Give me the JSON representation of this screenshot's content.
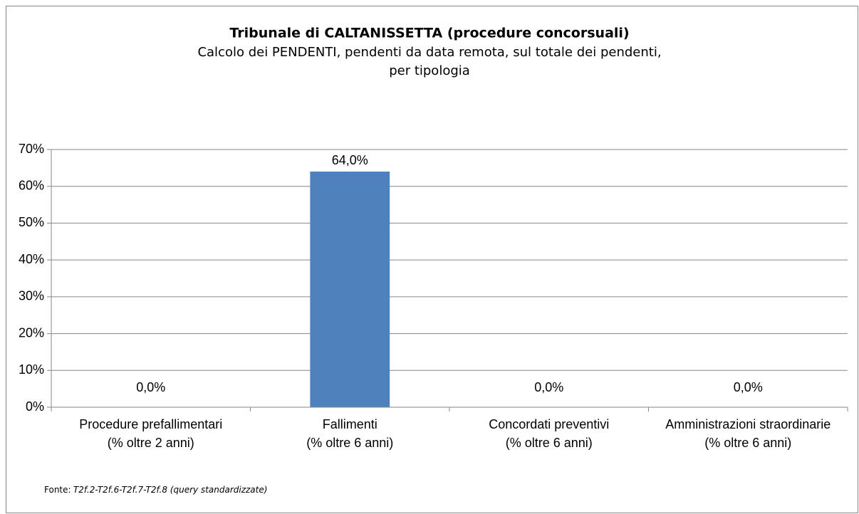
{
  "chart_data": {
    "type": "bar",
    "title": "Tribunale di CALTANISSETTA (procedure concorsuali)",
    "subtitle": "Calcolo dei PENDENTI, pendenti da data remota, sul totale dei pendenti,\nper tipologia",
    "categories": [
      "Procedure prefallimentari\n(% oltre 2 anni)",
      "Fallimenti\n(% oltre 6 anni)",
      "Concordati preventivi\n(% oltre 6 anni)",
      "Amministrazioni straordinarie\n(% oltre 6 anni)"
    ],
    "values": [
      0,
      64,
      0,
      0
    ],
    "value_labels": [
      "0,0%",
      "64,0%",
      "0,0%",
      "0,0%"
    ],
    "color": "#4f81bd",
    "ylim": [
      0,
      70
    ],
    "yticks": [
      {
        "value": 0,
        "label": "0%"
      },
      {
        "value": 10,
        "label": "10%"
      },
      {
        "value": 20,
        "label": "20%"
      },
      {
        "value": 30,
        "label": "30%"
      },
      {
        "value": 40,
        "label": "40%"
      },
      {
        "value": 50,
        "label": "50%"
      },
      {
        "value": 60,
        "label": "60%"
      },
      {
        "value": 70,
        "label": "70%"
      }
    ],
    "grid": true,
    "source_label": "Fonte:",
    "source": "T2f.2-T2f.6-T2f.7-T2f.8 (query standardizzate)"
  }
}
